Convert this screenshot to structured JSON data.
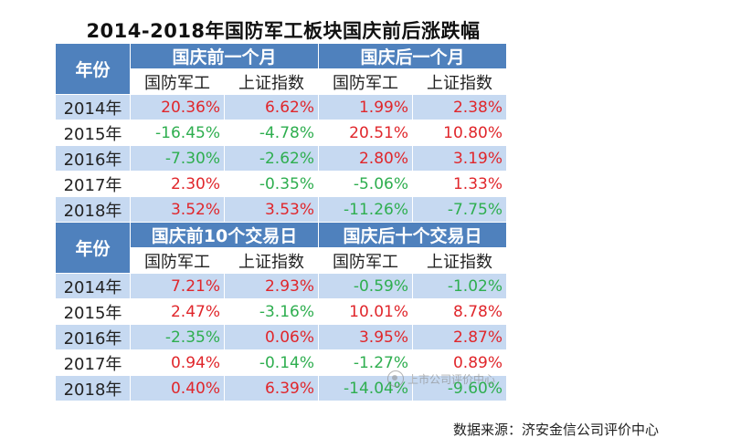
{
  "title": "2014-2018年国防军工板块国庆前后涨跌幅",
  "tables": [
    {
      "year_header": "年份",
      "groups": [
        "国庆前一个月",
        "国庆后一个月"
      ],
      "subheaders": [
        "国防军工",
        "上证指数",
        "国防军工",
        "上证指数"
      ],
      "rows": [
        {
          "year": "2014年",
          "values": [
            "20.36%",
            "6.62%",
            "1.99%",
            "2.38%"
          ]
        },
        {
          "year": "2015年",
          "values": [
            "-16.45%",
            "-4.78%",
            "20.51%",
            "10.80%"
          ]
        },
        {
          "year": "2016年",
          "values": [
            "-7.30%",
            "-2.62%",
            "2.80%",
            "3.19%"
          ]
        },
        {
          "year": "2017年",
          "values": [
            "2.30%",
            "-0.35%",
            "-5.06%",
            "1.33%"
          ]
        },
        {
          "year": "2018年",
          "values": [
            "3.52%",
            "3.53%",
            "-11.26%",
            "-7.75%"
          ]
        }
      ]
    },
    {
      "year_header": "年份",
      "groups": [
        "国庆前10个交易日",
        "国庆后十个交易日"
      ],
      "subheaders": [
        "国防军工",
        "上证指数",
        "国防军工",
        "上证指数"
      ],
      "rows": [
        {
          "year": "2014年",
          "values": [
            "7.21%",
            "2.93%",
            "-0.59%",
            "-1.02%"
          ]
        },
        {
          "year": "2015年",
          "values": [
            "2.47%",
            "-3.16%",
            "10.01%",
            "8.78%"
          ]
        },
        {
          "year": "2016年",
          "values": [
            "-2.35%",
            "0.06%",
            "3.95%",
            "2.87%"
          ]
        },
        {
          "year": "2017年",
          "values": [
            "0.94%",
            "-0.14%",
            "-1.27%",
            "0.89%"
          ]
        },
        {
          "year": "2018年",
          "values": [
            "0.40%",
            "6.39%",
            "-14.04%",
            "-9.60%"
          ]
        }
      ]
    }
  ],
  "source": "数据来源：济安金信公司评价中心",
  "watermark": "上市公司评价中心",
  "colors": {
    "header_bg": "#4f81bd",
    "shade_bg": "#c6d9f1",
    "positive": "#e0262b",
    "negative": "#2eae4f"
  }
}
